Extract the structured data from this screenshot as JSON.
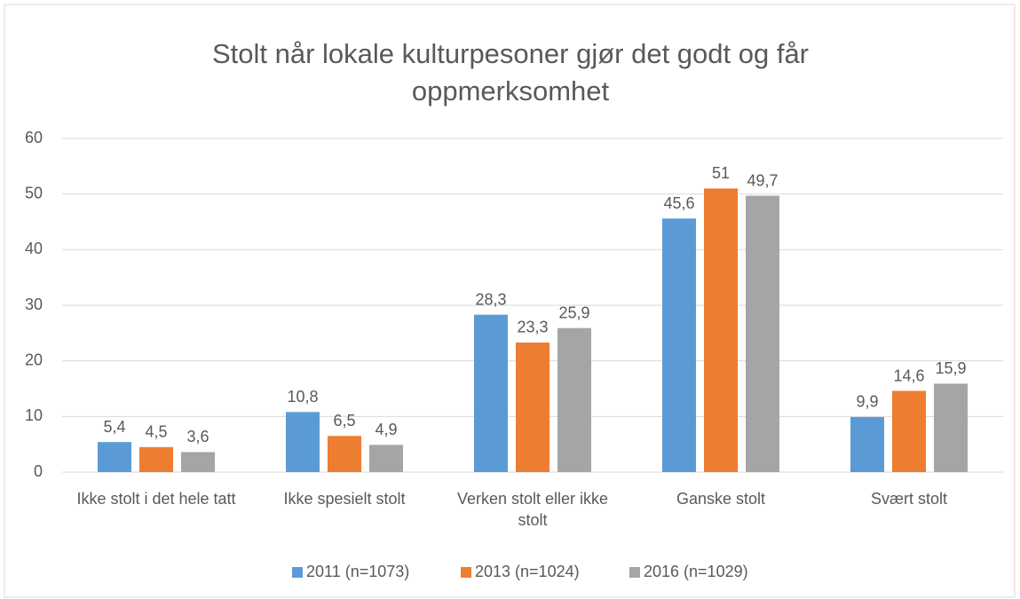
{
  "chart_data": {
    "type": "bar",
    "title": "Stolt når lokale kulturpesoner gjør det godt og får oppmerksomhet",
    "categories": [
      "Ikke stolt i det hele tatt",
      "Ikke spesielt stolt",
      "Verken stolt eller ikke stolt",
      "Ganske stolt",
      "Svært stolt"
    ],
    "series": [
      {
        "name": "2011 (n=1073)",
        "color": "#5b9bd5",
        "values": [
          5.4,
          10.8,
          28.3,
          45.6,
          9.9
        ],
        "value_labels": [
          "5,4",
          "10,8",
          "28,3",
          "45,6",
          "9,9"
        ]
      },
      {
        "name": "2013 (n=1024)",
        "color": "#ed7d31",
        "values": [
          4.5,
          6.5,
          23.3,
          51,
          14.6
        ],
        "value_labels": [
          "4,5",
          "6,5",
          "23,3",
          "51",
          "14,6"
        ]
      },
      {
        "name": "2016 (n=1029)",
        "color": "#a5a5a5",
        "values": [
          3.6,
          4.9,
          25.9,
          49.7,
          15.9
        ],
        "value_labels": [
          "3,6",
          "4,9",
          "25,9",
          "49,7",
          "15,9"
        ]
      }
    ],
    "ylim": [
      0,
      60
    ],
    "yticks": [
      0,
      10,
      20,
      30,
      40,
      50,
      60
    ],
    "grid": true,
    "legend": "bottom"
  }
}
